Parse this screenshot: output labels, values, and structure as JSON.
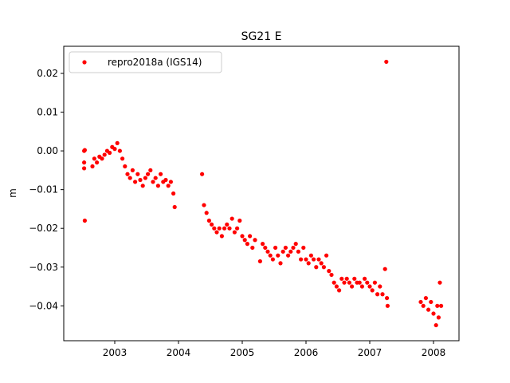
{
  "chart_data": {
    "type": "scatter",
    "title": "SG21 E",
    "xlabel": "",
    "ylabel": "m",
    "xlim": [
      2002.2,
      2008.4
    ],
    "ylim": [
      -0.049,
      0.027
    ],
    "xticks": [
      2003,
      2004,
      2005,
      2006,
      2007,
      2008
    ],
    "yticks": [
      0.02,
      0.01,
      0.0,
      -0.01,
      -0.02,
      -0.03,
      -0.04
    ],
    "ytick_labels": [
      "0.02",
      "0.01",
      "0.00",
      "−0.01",
      "−0.02",
      "−0.03",
      "−0.04"
    ],
    "legend_position": "top-left",
    "grid": false,
    "series": [
      {
        "name": "repro2018a (IGS14)",
        "color": "#ff0000",
        "x": [
          2002.52,
          2002.52,
          2002.52,
          2002.53,
          2002.53,
          2002.65,
          2002.68,
          2002.72,
          2002.76,
          2002.8,
          2002.84,
          2002.88,
          2002.92,
          2002.96,
          2003.0,
          2003.04,
          2003.08,
          2003.12,
          2003.16,
          2003.2,
          2003.24,
          2003.28,
          2003.32,
          2003.36,
          2003.4,
          2003.44,
          2003.48,
          2003.52,
          2003.56,
          2003.6,
          2003.64,
          2003.68,
          2003.72,
          2003.76,
          2003.8,
          2003.84,
          2003.88,
          2003.92,
          2003.94,
          2004.37,
          2004.4,
          2004.44,
          2004.48,
          2004.52,
          2004.56,
          2004.6,
          2004.64,
          2004.68,
          2004.72,
          2004.76,
          2004.8,
          2004.84,
          2004.88,
          2004.92,
          2004.96,
          2005.0,
          2005.04,
          2005.08,
          2005.12,
          2005.16,
          2005.2,
          2005.28,
          2005.32,
          2005.36,
          2005.4,
          2005.44,
          2005.48,
          2005.52,
          2005.56,
          2005.6,
          2005.64,
          2005.68,
          2005.72,
          2005.76,
          2005.8,
          2005.84,
          2005.88,
          2005.92,
          2005.96,
          2006.0,
          2006.04,
          2006.08,
          2006.12,
          2006.16,
          2006.2,
          2006.24,
          2006.28,
          2006.32,
          2006.36,
          2006.4,
          2006.44,
          2006.48,
          2006.52,
          2006.56,
          2006.6,
          2006.64,
          2006.68,
          2006.72,
          2006.76,
          2006.8,
          2006.84,
          2006.88,
          2006.92,
          2006.96,
          2007.0,
          2007.04,
          2007.08,
          2007.12,
          2007.16,
          2007.2,
          2007.24,
          2007.26,
          2007.27,
          2007.28,
          2007.8,
          2007.84,
          2007.88,
          2007.92,
          2007.96,
          2008.0,
          2008.04,
          2008.06,
          2008.08,
          2008.1,
          2008.12
        ],
        "y": [
          0.0,
          -0.003,
          -0.0045,
          -0.018,
          0.0002,
          -0.004,
          -0.002,
          -0.003,
          -0.0015,
          -0.002,
          -0.001,
          0.0,
          -0.0005,
          0.001,
          0.0005,
          0.002,
          0.0,
          -0.002,
          -0.004,
          -0.006,
          -0.007,
          -0.005,
          -0.008,
          -0.006,
          -0.0075,
          -0.009,
          -0.007,
          -0.006,
          -0.005,
          -0.008,
          -0.007,
          -0.009,
          -0.006,
          -0.008,
          -0.0075,
          -0.009,
          -0.008,
          -0.011,
          -0.0145,
          -0.006,
          -0.014,
          -0.016,
          -0.018,
          -0.019,
          -0.02,
          -0.021,
          -0.02,
          -0.022,
          -0.02,
          -0.019,
          -0.02,
          -0.0175,
          -0.021,
          -0.02,
          -0.018,
          -0.022,
          -0.023,
          -0.024,
          -0.022,
          -0.025,
          -0.023,
          -0.0285,
          -0.024,
          -0.025,
          -0.026,
          -0.027,
          -0.028,
          -0.025,
          -0.027,
          -0.029,
          -0.026,
          -0.025,
          -0.027,
          -0.026,
          -0.025,
          -0.024,
          -0.026,
          -0.028,
          -0.025,
          -0.028,
          -0.029,
          -0.027,
          -0.028,
          -0.03,
          -0.028,
          -0.029,
          -0.03,
          -0.027,
          -0.031,
          -0.032,
          -0.034,
          -0.035,
          -0.036,
          -0.033,
          -0.034,
          -0.033,
          -0.034,
          -0.035,
          -0.033,
          -0.034,
          -0.034,
          -0.035,
          -0.033,
          -0.034,
          -0.035,
          -0.036,
          -0.034,
          -0.037,
          -0.035,
          -0.037,
          -0.0305,
          0.023,
          -0.038,
          -0.04,
          -0.039,
          -0.04,
          -0.038,
          -0.041,
          -0.039,
          -0.042,
          -0.045,
          -0.04,
          -0.043,
          -0.034,
          -0.04
        ]
      }
    ]
  }
}
